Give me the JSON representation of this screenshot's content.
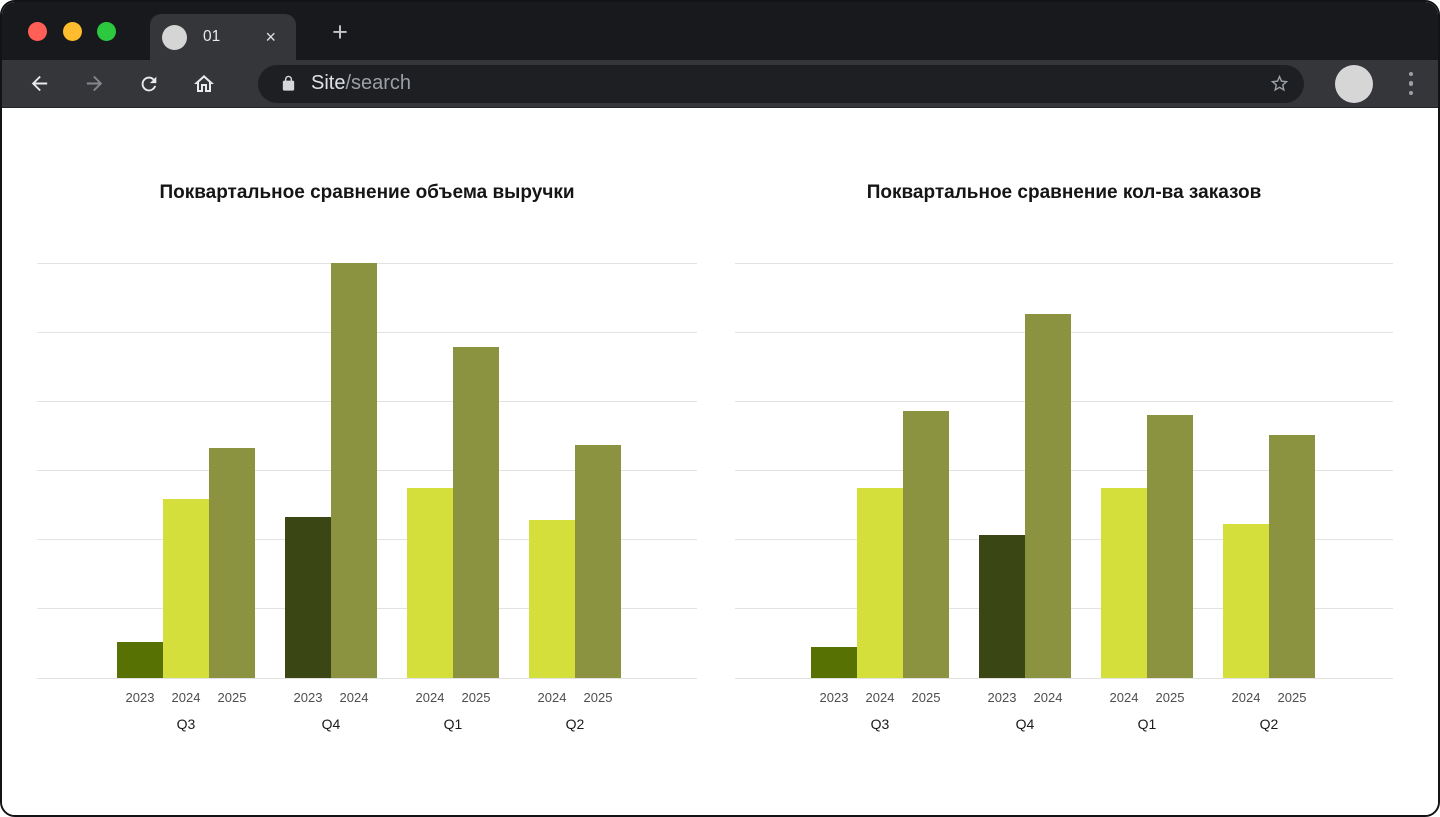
{
  "browser": {
    "window_controls": [
      {
        "name": "close",
        "color": "#ff5f57"
      },
      {
        "name": "minimize",
        "color": "#febc2e"
      },
      {
        "name": "zoom",
        "color": "#2bc840"
      }
    ],
    "tab": {
      "title": "01",
      "close_label": "×"
    },
    "new_tab_label": "+",
    "address_bar": {
      "site": "Site",
      "path": "/search"
    }
  },
  "chart_data": [
    {
      "type": "bar",
      "title": "Поквартальное сравнение объема выручки",
      "y_axis": {
        "tick_labels_visible": false,
        "gridline_intervals": 6,
        "unit": "gridline-interval",
        "ylim": [
          0,
          6
        ]
      },
      "legend": false,
      "groups": [
        {
          "quarter": "Q3",
          "bars": [
            {
              "year": "2023",
              "value": 0.52,
              "color": "#587103"
            },
            {
              "year": "2024",
              "value": 2.59,
              "color": "#d4df3b"
            },
            {
              "year": "2025",
              "value": 3.32,
              "color": "#8b9340"
            }
          ]
        },
        {
          "quarter": "Q4",
          "bars": [
            {
              "year": "2023",
              "value": 2.33,
              "color": "#3a4614"
            },
            {
              "year": "2024",
              "value": 6.0,
              "color": "#8b9340"
            }
          ]
        },
        {
          "quarter": "Q1",
          "bars": [
            {
              "year": "2024",
              "value": 2.75,
              "color": "#d4df3b"
            },
            {
              "year": "2025",
              "value": 4.78,
              "color": "#8b9340"
            }
          ]
        },
        {
          "quarter": "Q2",
          "bars": [
            {
              "year": "2024",
              "value": 2.28,
              "color": "#d4df3b"
            },
            {
              "year": "2025",
              "value": 3.37,
              "color": "#8b9340"
            }
          ]
        }
      ]
    },
    {
      "type": "bar",
      "title": "Поквартальное сравнение кол-ва заказов",
      "y_axis": {
        "tick_labels_visible": false,
        "gridline_intervals": 6,
        "unit": "gridline-interval",
        "ylim": [
          0,
          6
        ]
      },
      "legend": false,
      "groups": [
        {
          "quarter": "Q3",
          "bars": [
            {
              "year": "2023",
              "value": 0.45,
              "color": "#587103"
            },
            {
              "year": "2024",
              "value": 2.75,
              "color": "#d4df3b"
            },
            {
              "year": "2025",
              "value": 3.86,
              "color": "#8b9340"
            }
          ]
        },
        {
          "quarter": "Q4",
          "bars": [
            {
              "year": "2023",
              "value": 2.07,
              "color": "#3a4614"
            },
            {
              "year": "2024",
              "value": 5.26,
              "color": "#8b9340"
            }
          ]
        },
        {
          "quarter": "Q1",
          "bars": [
            {
              "year": "2024",
              "value": 2.75,
              "color": "#d4df3b"
            },
            {
              "year": "2025",
              "value": 3.8,
              "color": "#8b9340"
            }
          ]
        },
        {
          "quarter": "Q2",
          "bars": [
            {
              "year": "2024",
              "value": 2.23,
              "color": "#d4df3b"
            },
            {
              "year": "2025",
              "value": 3.51,
              "color": "#8b9340"
            }
          ]
        }
      ]
    }
  ]
}
